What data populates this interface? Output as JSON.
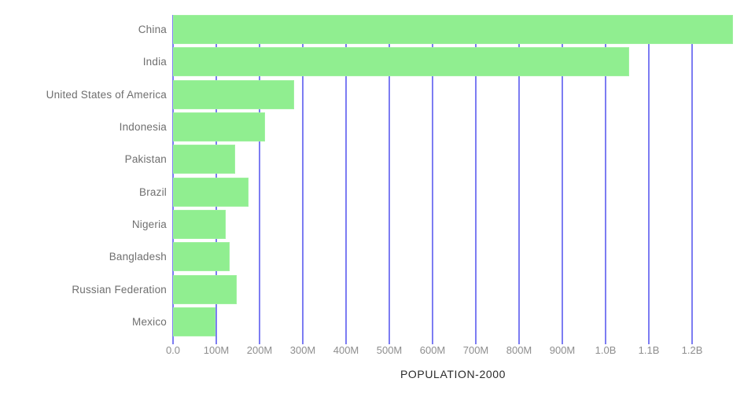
{
  "chart_data": {
    "type": "bar",
    "orientation": "horizontal",
    "title": "POPULATION-2000",
    "categories": [
      "China",
      "India",
      "United States of America",
      "Indonesia",
      "Pakistan",
      "Brazil",
      "Nigeria",
      "Bangladesh",
      "Russian Federation",
      "Mexico"
    ],
    "values": [
      1295000000,
      1055000000,
      280000000,
      212000000,
      143000000,
      175000000,
      122000000,
      131000000,
      147000000,
      98000000
    ],
    "xlabel": "POPULATION-2000",
    "ylabel": "",
    "xlim": [
      0,
      1295000000
    ],
    "x_tick_labels": [
      "0.0",
      "100M",
      "200M",
      "300M",
      "400M",
      "500M",
      "600M",
      "700M",
      "800M",
      "900M",
      "1.0B",
      "1.1B",
      "1.2B"
    ],
    "x_tick_values": [
      0,
      100000000,
      200000000,
      300000000,
      400000000,
      500000000,
      600000000,
      700000000,
      800000000,
      900000000,
      1000000000,
      1100000000,
      1200000000
    ],
    "grid": true,
    "legend": false,
    "bar_color": "#90ee90",
    "gridline_color": "#7c7cf2",
    "category_label_color": "#6f6f6f",
    "tick_label_color": "#8e8e8e",
    "title_color": "#2b2b2b",
    "background_color": "#ffffff"
  }
}
